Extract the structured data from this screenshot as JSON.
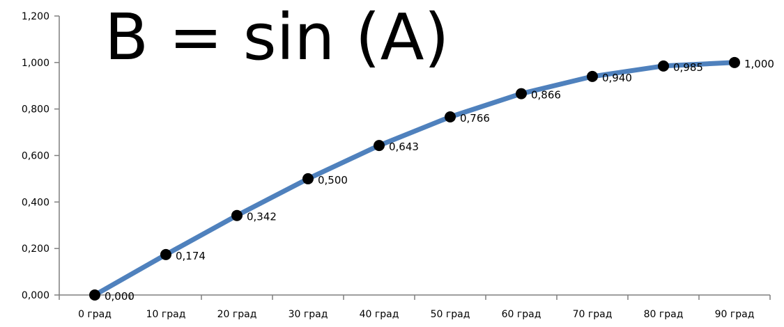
{
  "chart_data": {
    "type": "line",
    "title": "B = sin (A)",
    "categories": [
      "0 град",
      "10 град",
      "20 град",
      "30 град",
      "40 град",
      "50 град",
      "60 град",
      "70 град",
      "80 град",
      "90 град"
    ],
    "series": [
      {
        "values": [
          0.0,
          0.174,
          0.342,
          0.5,
          0.643,
          0.766,
          0.866,
          0.94,
          0.985,
          1.0
        ],
        "data_labels": [
          "0,000",
          "0,174",
          "0,342",
          "0,500",
          "0,643",
          "0,766",
          "0,866",
          "0,940",
          "0,985",
          "1,000"
        ]
      }
    ],
    "yticks": [
      0,
      0.2,
      0.4,
      0.6,
      0.8,
      1.0,
      1.2
    ],
    "ytick_labels": [
      "0,000",
      "0,200",
      "0,400",
      "0,600",
      "0,800",
      "1,000",
      "1,200"
    ],
    "ylim": [
      0,
      1.2
    ],
    "xlabel": "",
    "ylabel": "",
    "grid": false,
    "legend": "none",
    "colors": {
      "line": "#4F81BD",
      "marker": "#000000",
      "axis": "#7F7F7F"
    }
  }
}
